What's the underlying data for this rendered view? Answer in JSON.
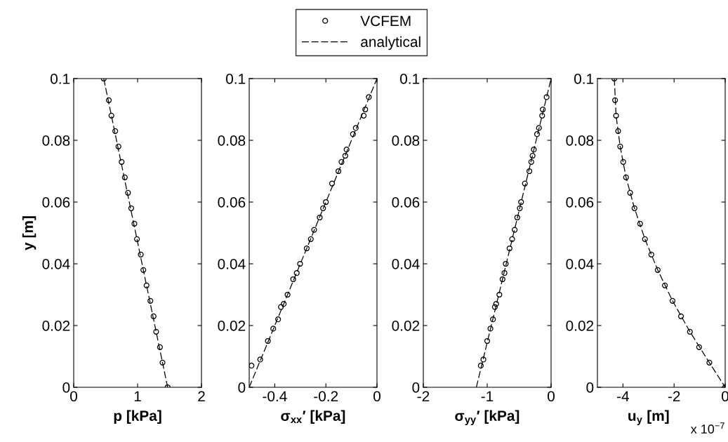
{
  "chart_data": [
    {
      "type": "scatter",
      "xlabel": "p [kPa]",
      "ylabel": "y [m]",
      "xlim": [
        0,
        2
      ],
      "xticks": [
        0,
        1,
        2
      ],
      "ylim": [
        0,
        0.1
      ],
      "yticks": [
        0,
        0.02,
        0.04,
        0.06,
        0.08,
        0.1
      ],
      "grid": false,
      "legend": "top",
      "series": [
        {
          "name": "VCFEM",
          "color": "#000000",
          "marker": "circle",
          "x": [
            0.47,
            0.55,
            0.59,
            0.65,
            0.7,
            0.75,
            0.8,
            0.85,
            0.9,
            0.95,
            0.99,
            1.05,
            1.09,
            1.14,
            1.2,
            1.25,
            1.29,
            1.35,
            1.39,
            1.47
          ],
          "values": [
            0.1,
            0.093,
            0.088,
            0.083,
            0.078,
            0.073,
            0.068,
            0.063,
            0.058,
            0.053,
            0.048,
            0.043,
            0.038,
            0.033,
            0.028,
            0.023,
            0.018,
            0.013,
            0.008,
            0
          ]
        },
        {
          "name": "analytical",
          "type": "line",
          "color": "#000000",
          "line_style": "dashed",
          "x": [
            0.47,
            1.47
          ],
          "values": [
            0.1,
            0
          ]
        }
      ]
    },
    {
      "type": "scatter",
      "xlabel": "σ$_{xx}$′ [kPa]",
      "xlim": [
        -0.5,
        0
      ],
      "xticks": [
        -0.4,
        -0.2,
        0
      ],
      "ylim": [
        0,
        0.1
      ],
      "yticks": [
        0,
        0.02,
        0.04,
        0.06,
        0.08,
        0.1
      ],
      "grid": false,
      "series": [
        {
          "color": "#000000",
          "marker": "circle",
          "x": [
            -0.491,
            -0.457,
            -0.427,
            -0.406,
            -0.387,
            -0.376,
            -0.365,
            -0.35,
            -0.328,
            -0.314,
            -0.301,
            -0.275,
            -0.259,
            -0.246,
            -0.224,
            -0.211,
            -0.2,
            -0.176,
            -0.151,
            -0.139,
            -0.124,
            -0.119,
            -0.094,
            -0.083,
            -0.052,
            -0.046,
            -0.032
          ],
          "values": [
            0.007,
            0.009,
            0.015,
            0.019,
            0.022,
            0.026,
            0.027,
            0.03,
            0.035,
            0.037,
            0.04,
            0.045,
            0.048,
            0.051,
            0.055,
            0.058,
            0.06,
            0.066,
            0.07,
            0.073,
            0.075,
            0.077,
            0.082,
            0.084,
            0.088,
            0.09,
            0.094
          ]
        },
        {
          "type": "line",
          "color": "#000000",
          "line_style": "dashed",
          "x": [
            -0.5,
            0
          ],
          "values": [
            0,
            0.1
          ]
        }
      ]
    },
    {
      "type": "scatter",
      "xlabel": "σ$_{yy}$′ [kPa]",
      "xlim": [
        -2,
        0
      ],
      "xticks": [
        -2,
        -1,
        0
      ],
      "ylim": [
        0,
        0.1
      ],
      "yticks": [
        0,
        0.02,
        0.04,
        0.06,
        0.08,
        0.1
      ],
      "grid": false,
      "series": [
        {
          "color": "#000000",
          "marker": "circle",
          "x": [
            -1.1,
            -1.06,
            -1.0,
            -0.95,
            -0.91,
            -0.88,
            -0.86,
            -0.81,
            -0.76,
            -0.73,
            -0.71,
            -0.65,
            -0.61,
            -0.57,
            -0.53,
            -0.49,
            -0.47,
            -0.41,
            -0.34,
            -0.31,
            -0.29,
            -0.27,
            -0.22,
            -0.19,
            -0.14,
            -0.13,
            -0.07
          ],
          "values": [
            0.007,
            0.009,
            0.015,
            0.019,
            0.022,
            0.026,
            0.027,
            0.03,
            0.035,
            0.037,
            0.04,
            0.045,
            0.048,
            0.051,
            0.055,
            0.058,
            0.06,
            0.066,
            0.07,
            0.073,
            0.075,
            0.077,
            0.082,
            0.084,
            0.088,
            0.09,
            0.094
          ]
        },
        {
          "type": "line",
          "color": "#000000",
          "line_style": "dashed",
          "x": [
            -1.17,
            0
          ],
          "values": [
            0,
            0.1
          ]
        }
      ]
    },
    {
      "type": "scatter",
      "xlabel": "u$_{y}$ [m]",
      "annotations": [
        "x 10$^{−7}$"
      ],
      "xlim": [
        -5,
        0
      ],
      "xticks": [
        -4,
        -2,
        0
      ],
      "ylim": [
        0,
        0.1
      ],
      "yticks": [
        0,
        0.02,
        0.04,
        0.06,
        0.08,
        0.1
      ],
      "grid": false,
      "series": [
        {
          "color": "#000000",
          "marker": "circle",
          "x": [
            -4.34,
            -4.31,
            -4.27,
            -4.19,
            -4.11,
            -3.99,
            -3.88,
            -3.72,
            -3.55,
            -3.33,
            -3.14,
            -2.89,
            -2.64,
            -2.36,
            -2.06,
            -1.73,
            -1.38,
            -1.02,
            -0.62,
            0
          ],
          "values": [
            0.1,
            0.093,
            0.088,
            0.083,
            0.078,
            0.073,
            0.068,
            0.063,
            0.058,
            0.053,
            0.048,
            0.043,
            0.038,
            0.033,
            0.028,
            0.023,
            0.018,
            0.013,
            0.008,
            0
          ]
        },
        {
          "type": "line",
          "color": "#000000",
          "line_style": "dashed",
          "x": [
            -4.34,
            -4.27,
            -4.11,
            -3.88,
            -3.55,
            -3.14,
            -2.64,
            -2.06,
            -1.38,
            -0.62,
            0
          ],
          "values": [
            0.1,
            0.088,
            0.078,
            0.068,
            0.058,
            0.048,
            0.038,
            0.028,
            0.018,
            0.008,
            0
          ]
        }
      ]
    }
  ]
}
